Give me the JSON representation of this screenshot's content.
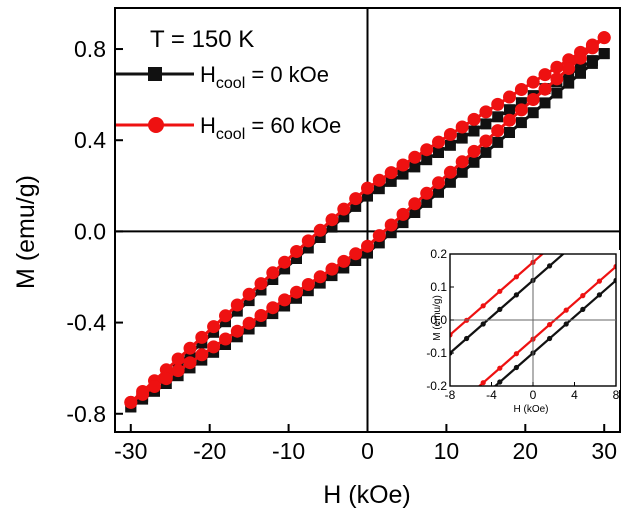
{
  "chart_data": [
    {
      "type": "line",
      "panel": "main",
      "annotation": "T = 150 K",
      "xlabel": "H (kOe)",
      "ylabel": "M (emu/g)",
      "xlim": [
        -32,
        32
      ],
      "ylim": [
        -0.88,
        0.98
      ],
      "x_ticks": [
        -30,
        -20,
        -10,
        0,
        10,
        20,
        30
      ],
      "x_tick_labels": [
        "-30",
        "-20",
        "-10",
        "0",
        "10",
        "20",
        "30"
      ],
      "y_ticks": [
        -0.8,
        -0.4,
        0.0,
        0.4,
        0.8
      ],
      "y_tick_labels": [
        "-0.8",
        "-0.4",
        "0.0",
        "0.4",
        "0.8"
      ],
      "grid": false,
      "legend_position": "top-left",
      "colors": {
        "black_series": "#111111",
        "red_series": "#ee1111"
      },
      "series": [
        {
          "name_main": "H",
          "name_sub": "cool",
          "name_rest": " = 0 kOe",
          "color": "#111111",
          "marker": "square",
          "upper_branch": {
            "x_start": -30,
            "x_end": 30,
            "y_start": -0.77,
            "y_end": 0.78,
            "y_at_0": 0.135,
            "hump": 0.02
          },
          "lower_branch": {
            "x_start": -30,
            "x_end": 30,
            "y_start": -0.77,
            "y_end": 0.78,
            "y_at_0": -0.115,
            "hump": 0.02
          }
        },
        {
          "name_main": "H",
          "name_sub": "cool",
          "name_rest": " = 60 kOe",
          "color": "#ee1111",
          "marker": "circle",
          "upper_branch": {
            "x_start": -30,
            "x_end": 30,
            "y_start": -0.75,
            "y_end": 0.85,
            "y_at_0": 0.17,
            "hump": 0.02
          },
          "lower_branch": {
            "x_start": -30,
            "x_end": 30,
            "y_start": -0.75,
            "y_end": 0.85,
            "y_at_0": -0.085,
            "hump": 0.02
          }
        }
      ]
    },
    {
      "type": "line",
      "panel": "inset",
      "xlabel": "H (kOe)",
      "ylabel": "M (emu/g)",
      "xlim": [
        -8,
        8
      ],
      "ylim": [
        -0.2,
        0.2
      ],
      "x_ticks": [
        -8,
        -4,
        0,
        4,
        8
      ],
      "x_tick_labels": [
        "-8",
        "-4",
        "0",
        "4",
        "8"
      ],
      "y_ticks": [
        -0.2,
        -0.1,
        0.0,
        0.1,
        0.2
      ],
      "y_tick_labels": [
        "-0.2",
        "-0.1",
        "0.0",
        "0.1",
        "0.2"
      ],
      "grid": false,
      "series": [
        {
          "color": "#111111",
          "marker": "circle",
          "upper_line": {
            "slope": 0.0275,
            "y_at_0": 0.12
          },
          "lower_line": {
            "slope": 0.0275,
            "y_at_0": -0.1
          }
        },
        {
          "color": "#ee1111",
          "marker": "circle",
          "upper_line": {
            "slope": 0.0275,
            "y_at_0": 0.175
          },
          "lower_line": {
            "slope": 0.0275,
            "y_at_0": -0.058
          }
        }
      ]
    }
  ]
}
